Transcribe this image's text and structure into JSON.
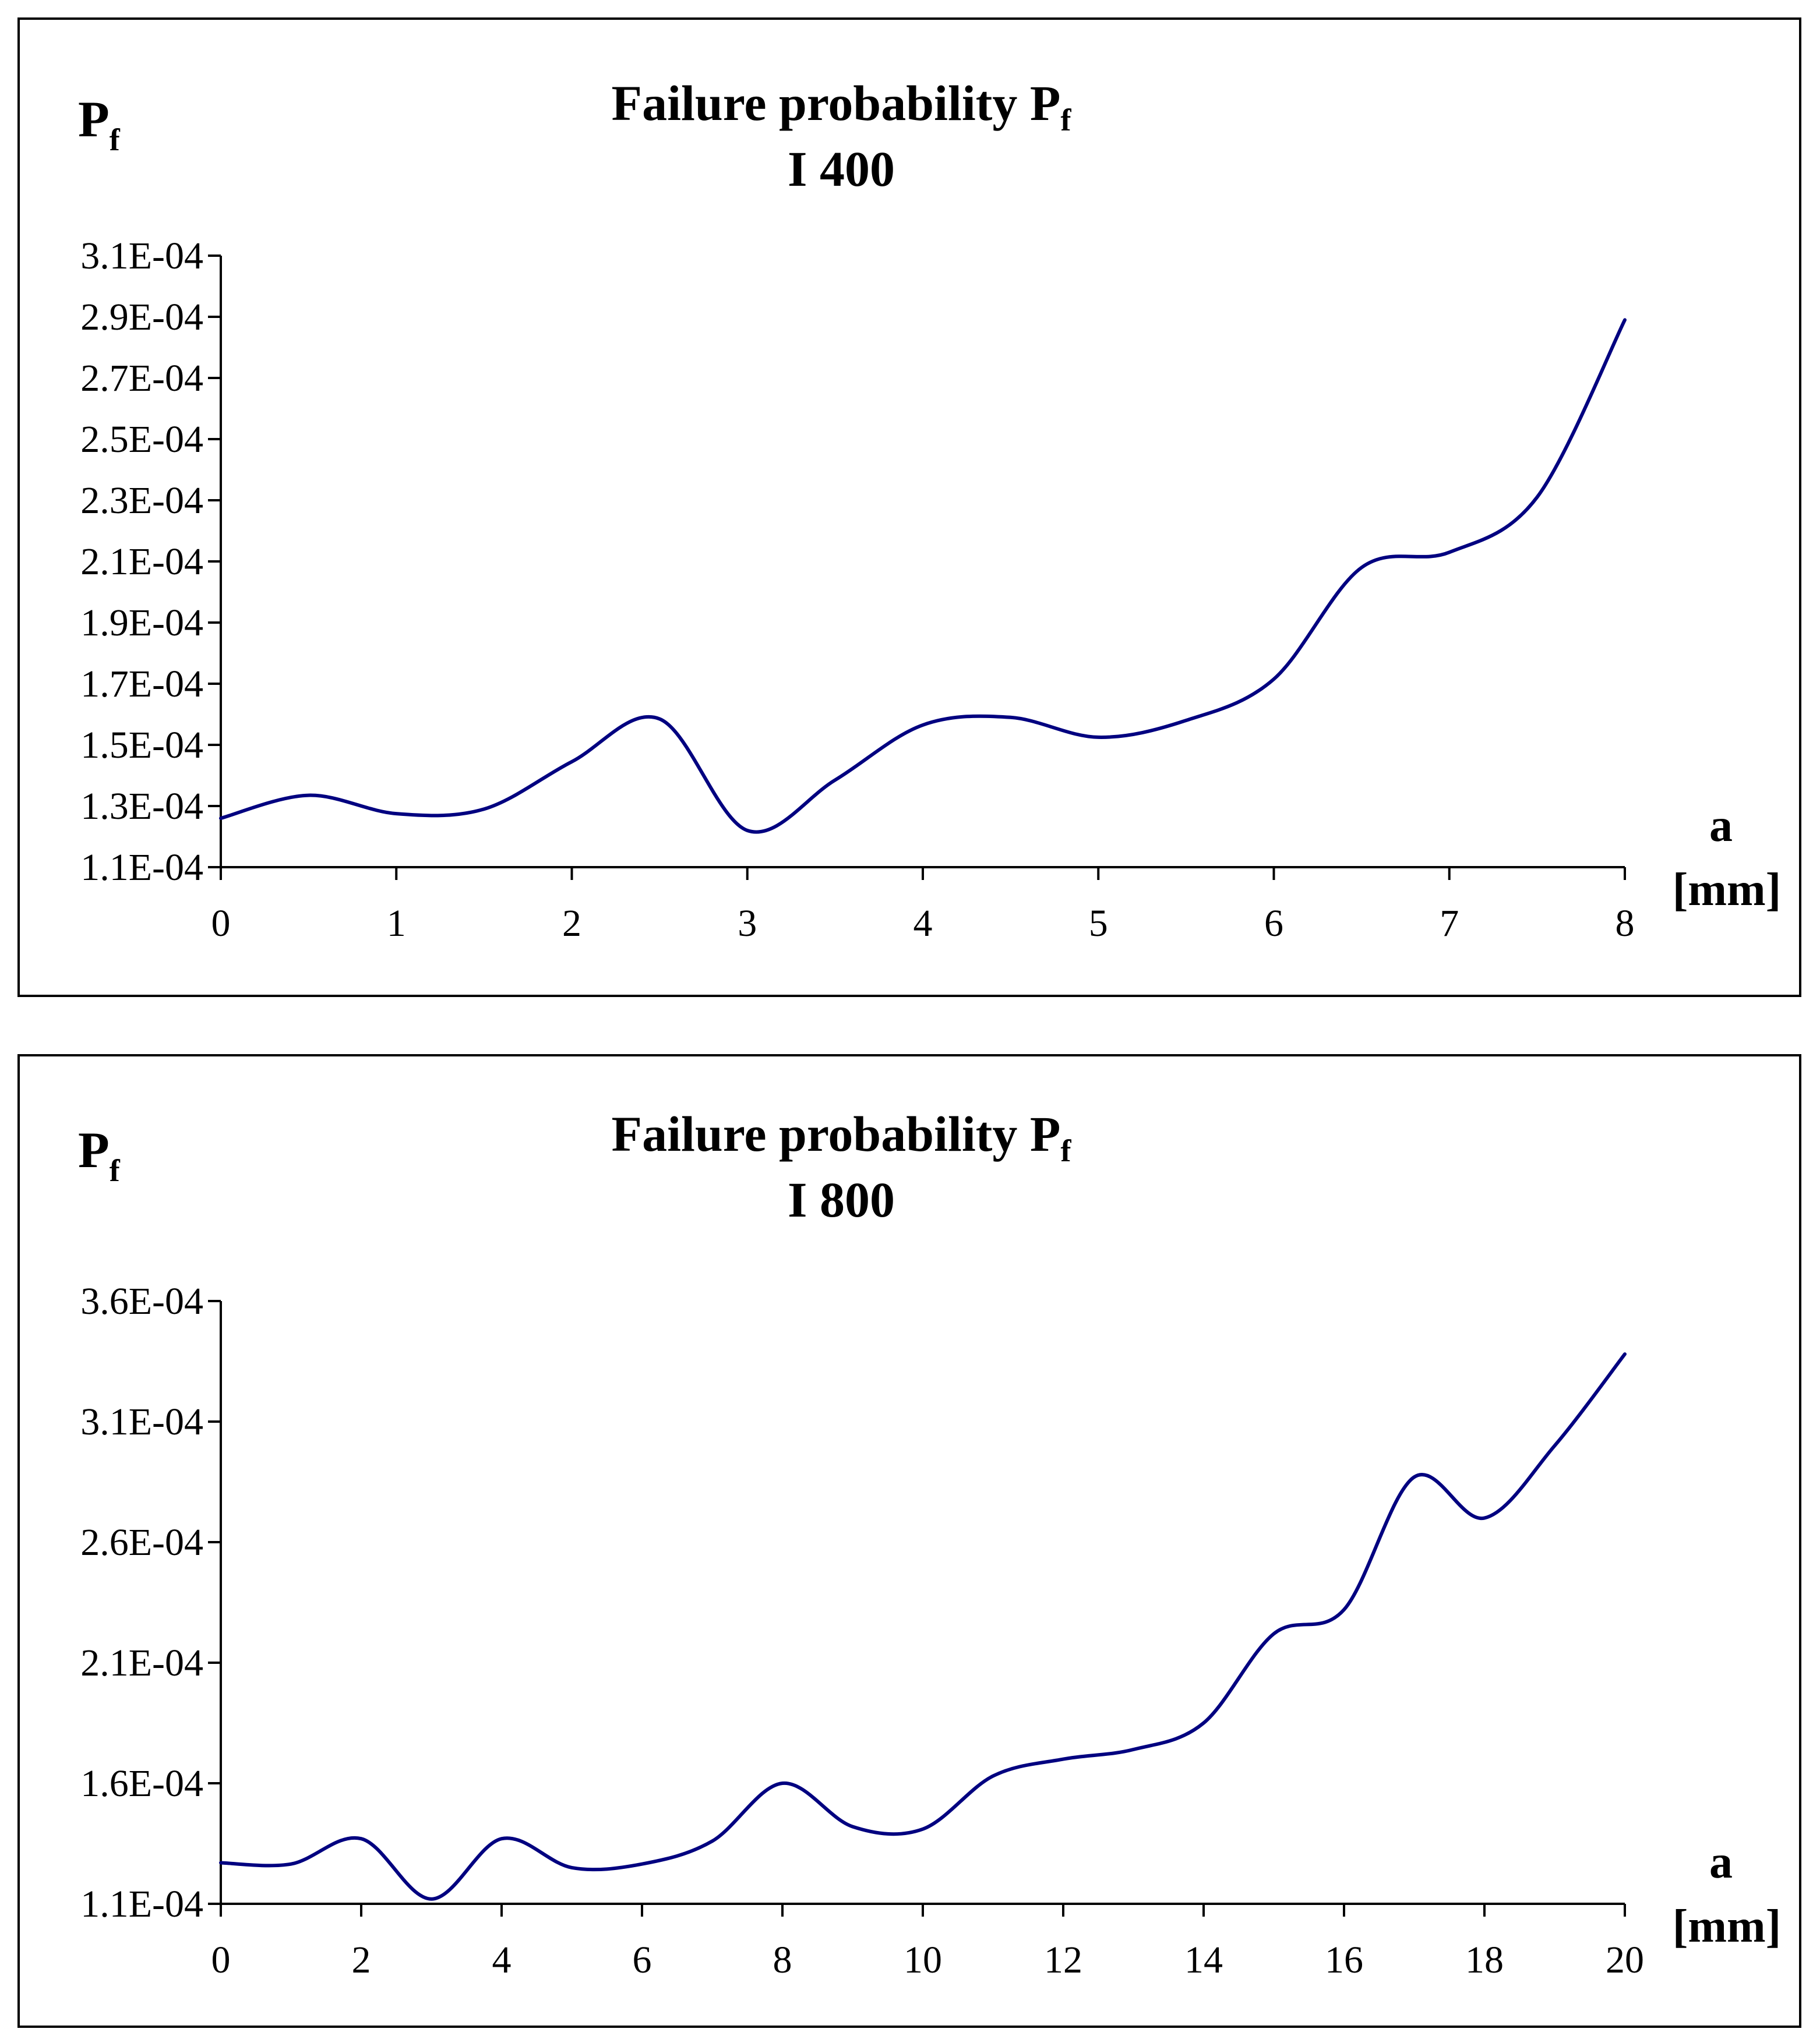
{
  "chart_data": [
    {
      "type": "line",
      "title": "Failure probability P",
      "title_subscript": "f",
      "subtitle": "I 400",
      "ylabel": "P",
      "ylabel_subscript": "f",
      "xlabel": "a",
      "xlabel_unit": "[mm]",
      "xlim": [
        0,
        8
      ],
      "ylim": [
        0.00011,
        0.00031
      ],
      "x_ticks": [
        "0",
        "1",
        "2",
        "3",
        "4",
        "5",
        "6",
        "7",
        "8"
      ],
      "y_ticks": [
        "1.1E-04",
        "1.3E-04",
        "1.5E-04",
        "1.7E-04",
        "1.9E-04",
        "2.1E-04",
        "2.3E-04",
        "2.5E-04",
        "2.7E-04",
        "2.9E-04",
        "3.1E-04"
      ],
      "grid": false,
      "series": [
        {
          "name": "I 400",
          "color": "#000080",
          "x": [
            0,
            0.5,
            1,
            1.5,
            2,
            2.5,
            3,
            3.5,
            4,
            4.5,
            5,
            5.5,
            6,
            6.5,
            7,
            7.5,
            8
          ],
          "y": [
            0.000126,
            0.0001335,
            0.0001275,
            0.000129,
            0.0001445,
            0.0001585,
            0.000122,
            0.0001385,
            0.0001565,
            0.000159,
            0.0001525,
            0.000158,
            0.0001715,
            0.000208,
            0.000213,
            0.000231,
            0.000289
          ]
        }
      ]
    },
    {
      "type": "line",
      "title": "Failure probability P",
      "title_subscript": "f",
      "subtitle": "I 800",
      "ylabel": "P",
      "ylabel_subscript": "f",
      "xlabel": "a",
      "xlabel_unit": "[mm]",
      "xlim": [
        0,
        20
      ],
      "ylim": [
        0.00011,
        0.00036
      ],
      "x_ticks": [
        "0",
        "2",
        "4",
        "6",
        "8",
        "10",
        "12",
        "14",
        "16",
        "18",
        "20"
      ],
      "y_ticks": [
        "1.1E-04",
        "1.6E-04",
        "2.1E-04",
        "2.6E-04",
        "3.1E-04",
        "3.6E-04"
      ],
      "grid": false,
      "series": [
        {
          "name": "I 800",
          "color": "#000080",
          "x": [
            0,
            1,
            2,
            3,
            4,
            5,
            6,
            7,
            8,
            9,
            10,
            11,
            12,
            13,
            14,
            15,
            16,
            17,
            18,
            19,
            20
          ],
          "y": [
            0.000127,
            0.0001265,
            0.000137,
            0.000112,
            0.000137,
            0.000125,
            0.0001265,
            0.000136,
            0.00016,
            0.000142,
            0.000141,
            0.000163,
            0.00017,
            0.000174,
            0.000185,
            0.000222,
            0.000232,
            0.000287,
            0.00027,
            0.0003,
            0.000338
          ]
        }
      ]
    }
  ]
}
